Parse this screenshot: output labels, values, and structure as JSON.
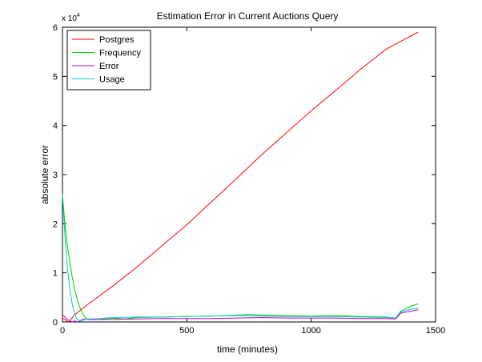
{
  "chart_data": {
    "type": "line",
    "title": "Estimation Error in Current Auctions Query",
    "xlabel": "time (minutes)",
    "ylabel": "absolute error",
    "xlim": [
      0,
      1500
    ],
    "ylim": [
      0,
      6
    ],
    "y_scale_exponent_label": "x 10",
    "y_scale_exponent_power": "4",
    "xticks": [
      0,
      500,
      1000,
      1500
    ],
    "yticks": [
      0,
      1,
      2,
      3,
      4,
      5,
      6
    ],
    "grid": false,
    "legend_position": "top-left",
    "series": [
      {
        "name": "Postgres",
        "color": "#ff0000",
        "x": [
          0,
          25,
          50,
          100,
          200,
          300,
          400,
          500,
          600,
          700,
          800,
          900,
          1000,
          1100,
          1200,
          1300,
          1400,
          1430
        ],
        "y": [
          0.08,
          0.0,
          0.15,
          0.35,
          0.72,
          1.12,
          1.55,
          1.98,
          2.45,
          2.92,
          3.4,
          3.85,
          4.3,
          4.72,
          5.15,
          5.55,
          5.82,
          5.9
        ]
      },
      {
        "name": "Frequency",
        "color": "#00cc00",
        "x": [
          0,
          10,
          20,
          30,
          40,
          50,
          60,
          70,
          80,
          90,
          100,
          120,
          150,
          200,
          250,
          300,
          400,
          500,
          600,
          700,
          750,
          800,
          900,
          1000,
          1100,
          1200,
          1300,
          1340,
          1360,
          1400,
          1430
        ],
        "y": [
          2.6,
          2.0,
          1.55,
          1.2,
          0.9,
          0.65,
          0.45,
          0.3,
          0.18,
          0.1,
          0.05,
          0.05,
          0.05,
          0.08,
          0.06,
          0.09,
          0.1,
          0.11,
          0.12,
          0.14,
          0.15,
          0.14,
          0.13,
          0.12,
          0.13,
          0.11,
          0.1,
          0.08,
          0.22,
          0.32,
          0.37
        ]
      },
      {
        "name": "Error",
        "color": "#cc00cc",
        "x": [
          0,
          10,
          20,
          30,
          40,
          50,
          60,
          70,
          80,
          90,
          100,
          150,
          200,
          300,
          400,
          500,
          600,
          700,
          800,
          900,
          1000,
          1100,
          1200,
          1300,
          1340,
          1360,
          1400,
          1430
        ],
        "y": [
          0.15,
          0.1,
          0.05,
          0.02,
          0.0,
          0.02,
          0.0,
          0.02,
          0.05,
          0.06,
          0.05,
          0.05,
          0.05,
          0.06,
          0.07,
          0.07,
          0.07,
          0.08,
          0.09,
          0.08,
          0.08,
          0.08,
          0.07,
          0.07,
          0.06,
          0.18,
          0.22,
          0.25
        ]
      },
      {
        "name": "Usage",
        "color": "#00cccc",
        "x": [
          0,
          10,
          20,
          30,
          40,
          50,
          60,
          70,
          80,
          90,
          100,
          150,
          200,
          300,
          400,
          500,
          600,
          700,
          800,
          900,
          1000,
          1100,
          1200,
          1300,
          1340,
          1360,
          1400,
          1430
        ],
        "y": [
          2.6,
          1.75,
          1.1,
          0.65,
          0.35,
          0.15,
          0.04,
          0.02,
          0.03,
          0.05,
          0.06,
          0.07,
          0.09,
          0.1,
          0.1,
          0.11,
          0.12,
          0.13,
          0.12,
          0.11,
          0.11,
          0.11,
          0.1,
          0.09,
          0.08,
          0.2,
          0.26,
          0.28
        ]
      }
    ]
  }
}
